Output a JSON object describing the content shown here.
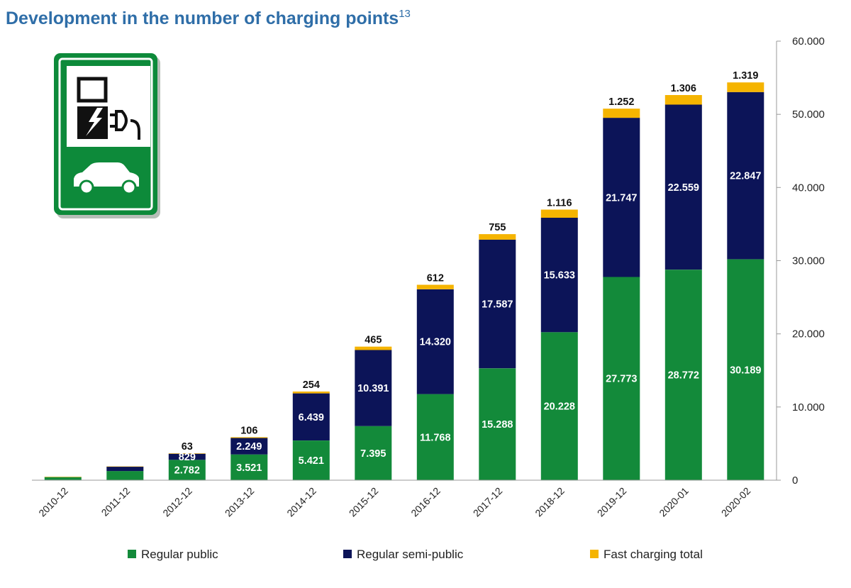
{
  "title": {
    "text": "Development  in the number of charging points",
    "footnote": "13"
  },
  "colors": {
    "regular_public": "#138a3a",
    "regular_semi_public": "#0c1458",
    "fast_charging": "#f5b400",
    "sign_green": "#0d8a3a",
    "title": "#2f6ea8"
  },
  "icon": {
    "name": "ev-charging-station-sign-icon"
  },
  "chart_data": {
    "type": "bar",
    "stacked": true,
    "categories": [
      "2010-12",
      "2011-12",
      "2012-12",
      "2013-12",
      "2014-12",
      "2015-12",
      "2016-12",
      "2017-12",
      "2018-12",
      "2019-12",
      "2020-01",
      "2020-02"
    ],
    "series": [
      {
        "name": "Regular public",
        "values": [
          450,
          1250,
          2782,
          3521,
          5421,
          7395,
          11768,
          15288,
          20228,
          27773,
          28772,
          30189
        ],
        "labels": [
          "",
          "",
          "2.782",
          "3.521",
          "5.421",
          "7.395",
          "11.768",
          "15.288",
          "20.228",
          "27.773",
          "28.772",
          "30.189"
        ]
      },
      {
        "name": "Regular semi-public",
        "values": [
          0,
          600,
          829,
          2249,
          6439,
          10391,
          14320,
          17587,
          15633,
          21747,
          22559,
          22847
        ],
        "labels": [
          "",
          "",
          "829",
          "2.249",
          "6.439",
          "10.391",
          "14.320",
          "17.587",
          "15.633",
          "21.747",
          "22.559",
          "22.847"
        ]
      },
      {
        "name": "Fast charging total",
        "values": [
          10,
          30,
          63,
          106,
          254,
          465,
          612,
          755,
          1116,
          1252,
          1306,
          1319
        ],
        "labels": [
          "",
          "",
          "63",
          "106",
          "254",
          "465",
          "612",
          "755",
          "1.116",
          "1.252",
          "1.306",
          "1.319"
        ]
      }
    ],
    "y_axis": {
      "position": "right",
      "ylim": [
        0,
        60000
      ],
      "ticks": [
        0,
        10000,
        20000,
        30000,
        40000,
        50000,
        60000
      ],
      "tick_labels": [
        "0",
        "10.000",
        "20.000",
        "30.000",
        "40.000",
        "50.000",
        "60.000"
      ]
    },
    "grid": false,
    "legend": "bottom"
  }
}
